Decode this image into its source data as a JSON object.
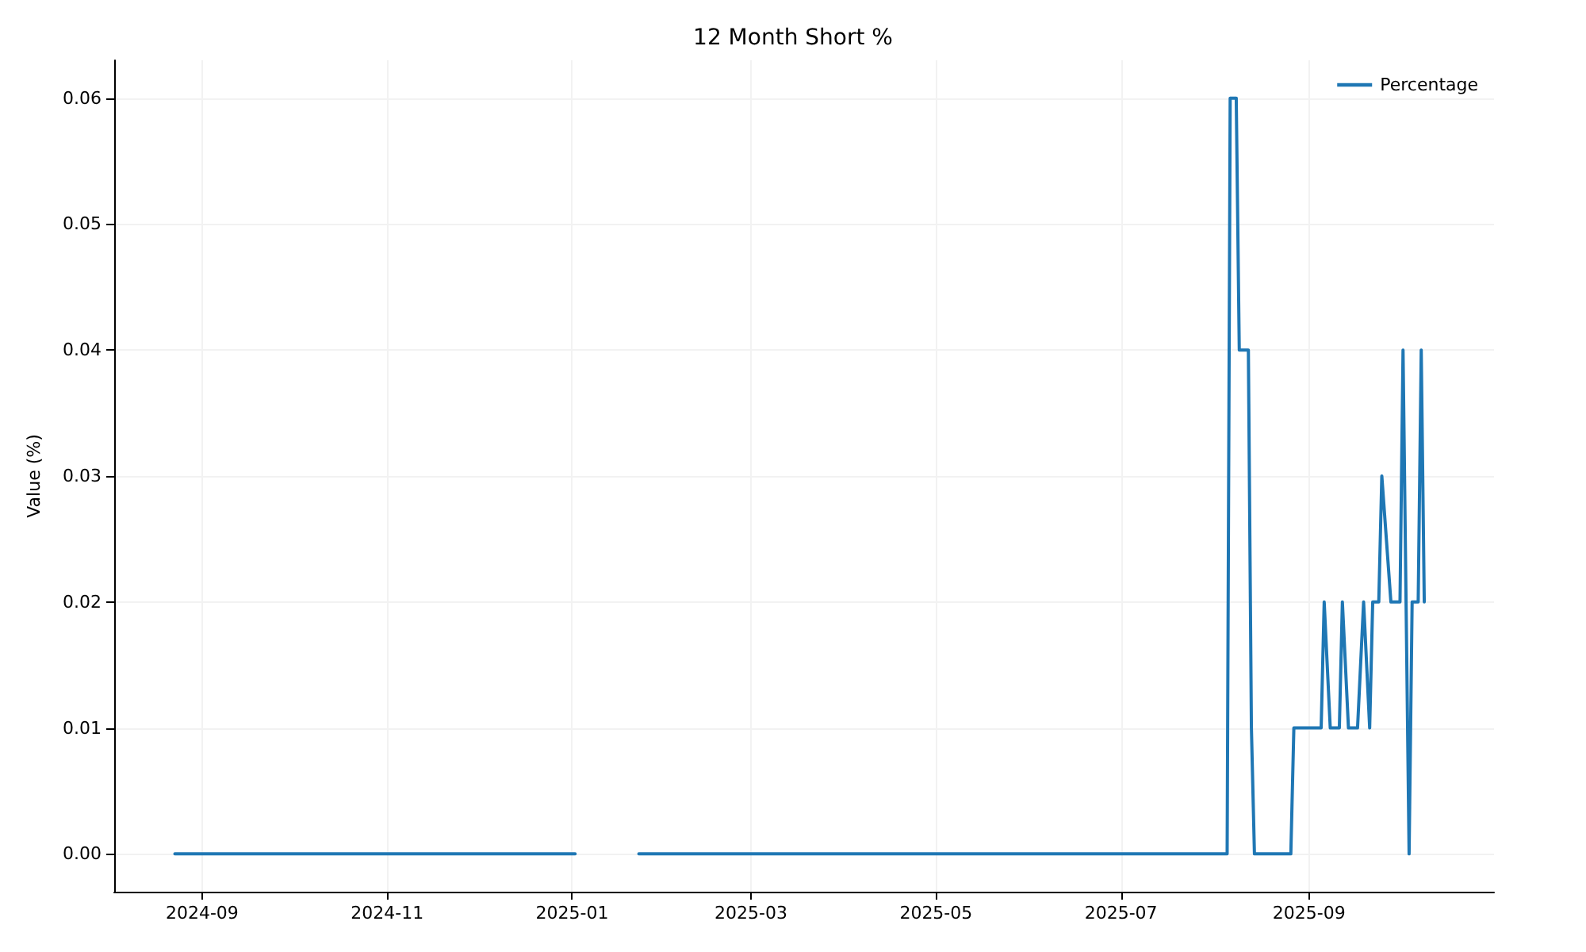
{
  "chart_data": {
    "type": "line",
    "title": "12 Month Short %",
    "ylabel": "Value (%)",
    "x": [
      "2024-08-23",
      "2025-01-02",
      "2025-01-12",
      "2025-01-23",
      "2025-08-05",
      "2025-08-06",
      "2025-08-08",
      "2025-08-09",
      "2025-08-12",
      "2025-08-13",
      "2025-08-14",
      "2025-08-26",
      "2025-08-27",
      "2025-09-05",
      "2025-09-06",
      "2025-09-08",
      "2025-09-11",
      "2025-09-12",
      "2025-09-14",
      "2025-09-17",
      "2025-09-19",
      "2025-09-21",
      "2025-09-22",
      "2025-09-24",
      "2025-09-25",
      "2025-09-28",
      "2025-10-01",
      "2025-10-02",
      "2025-10-04",
      "2025-10-05",
      "2025-10-07",
      "2025-10-08",
      "2025-10-09"
    ],
    "series": [
      {
        "name": "Percentage",
        "color": "#1f77b4",
        "values": [
          0,
          0,
          null,
          0,
          0,
          0.06,
          0.06,
          0.04,
          0.04,
          0.01,
          0,
          0,
          0.01,
          0.01,
          0.02,
          0.01,
          0.01,
          0.02,
          0.01,
          0.01,
          0.02,
          0.01,
          0.02,
          0.02,
          0.03,
          0.02,
          0.02,
          0.04,
          0,
          0.02,
          0.02,
          0.04,
          0.02
        ]
      }
    ],
    "xlim": [
      "2024-08-03",
      "2025-11-01"
    ],
    "xticks": [
      {
        "value": "2024-09-01",
        "label": "2024-09"
      },
      {
        "value": "2024-11-01",
        "label": "2024-11"
      },
      {
        "value": "2025-01-01",
        "label": "2025-01"
      },
      {
        "value": "2025-03-01",
        "label": "2025-03"
      },
      {
        "value": "2025-05-01",
        "label": "2025-05"
      },
      {
        "value": "2025-07-01",
        "label": "2025-07"
      },
      {
        "value": "2025-09-01",
        "label": "2025-09"
      }
    ],
    "ylim": [
      -0.003,
      0.063
    ],
    "yticks": [
      {
        "value": 0,
        "label": "0.00"
      },
      {
        "value": 0.01,
        "label": "0.01"
      },
      {
        "value": 0.02,
        "label": "0.02"
      },
      {
        "value": 0.03,
        "label": "0.03"
      },
      {
        "value": 0.04,
        "label": "0.04"
      },
      {
        "value": 0.05,
        "label": "0.05"
      },
      {
        "value": 0.06,
        "label": "0.06"
      }
    ],
    "grid": true,
    "legend": "top right",
    "marker": "none",
    "line_style": "solid"
  }
}
